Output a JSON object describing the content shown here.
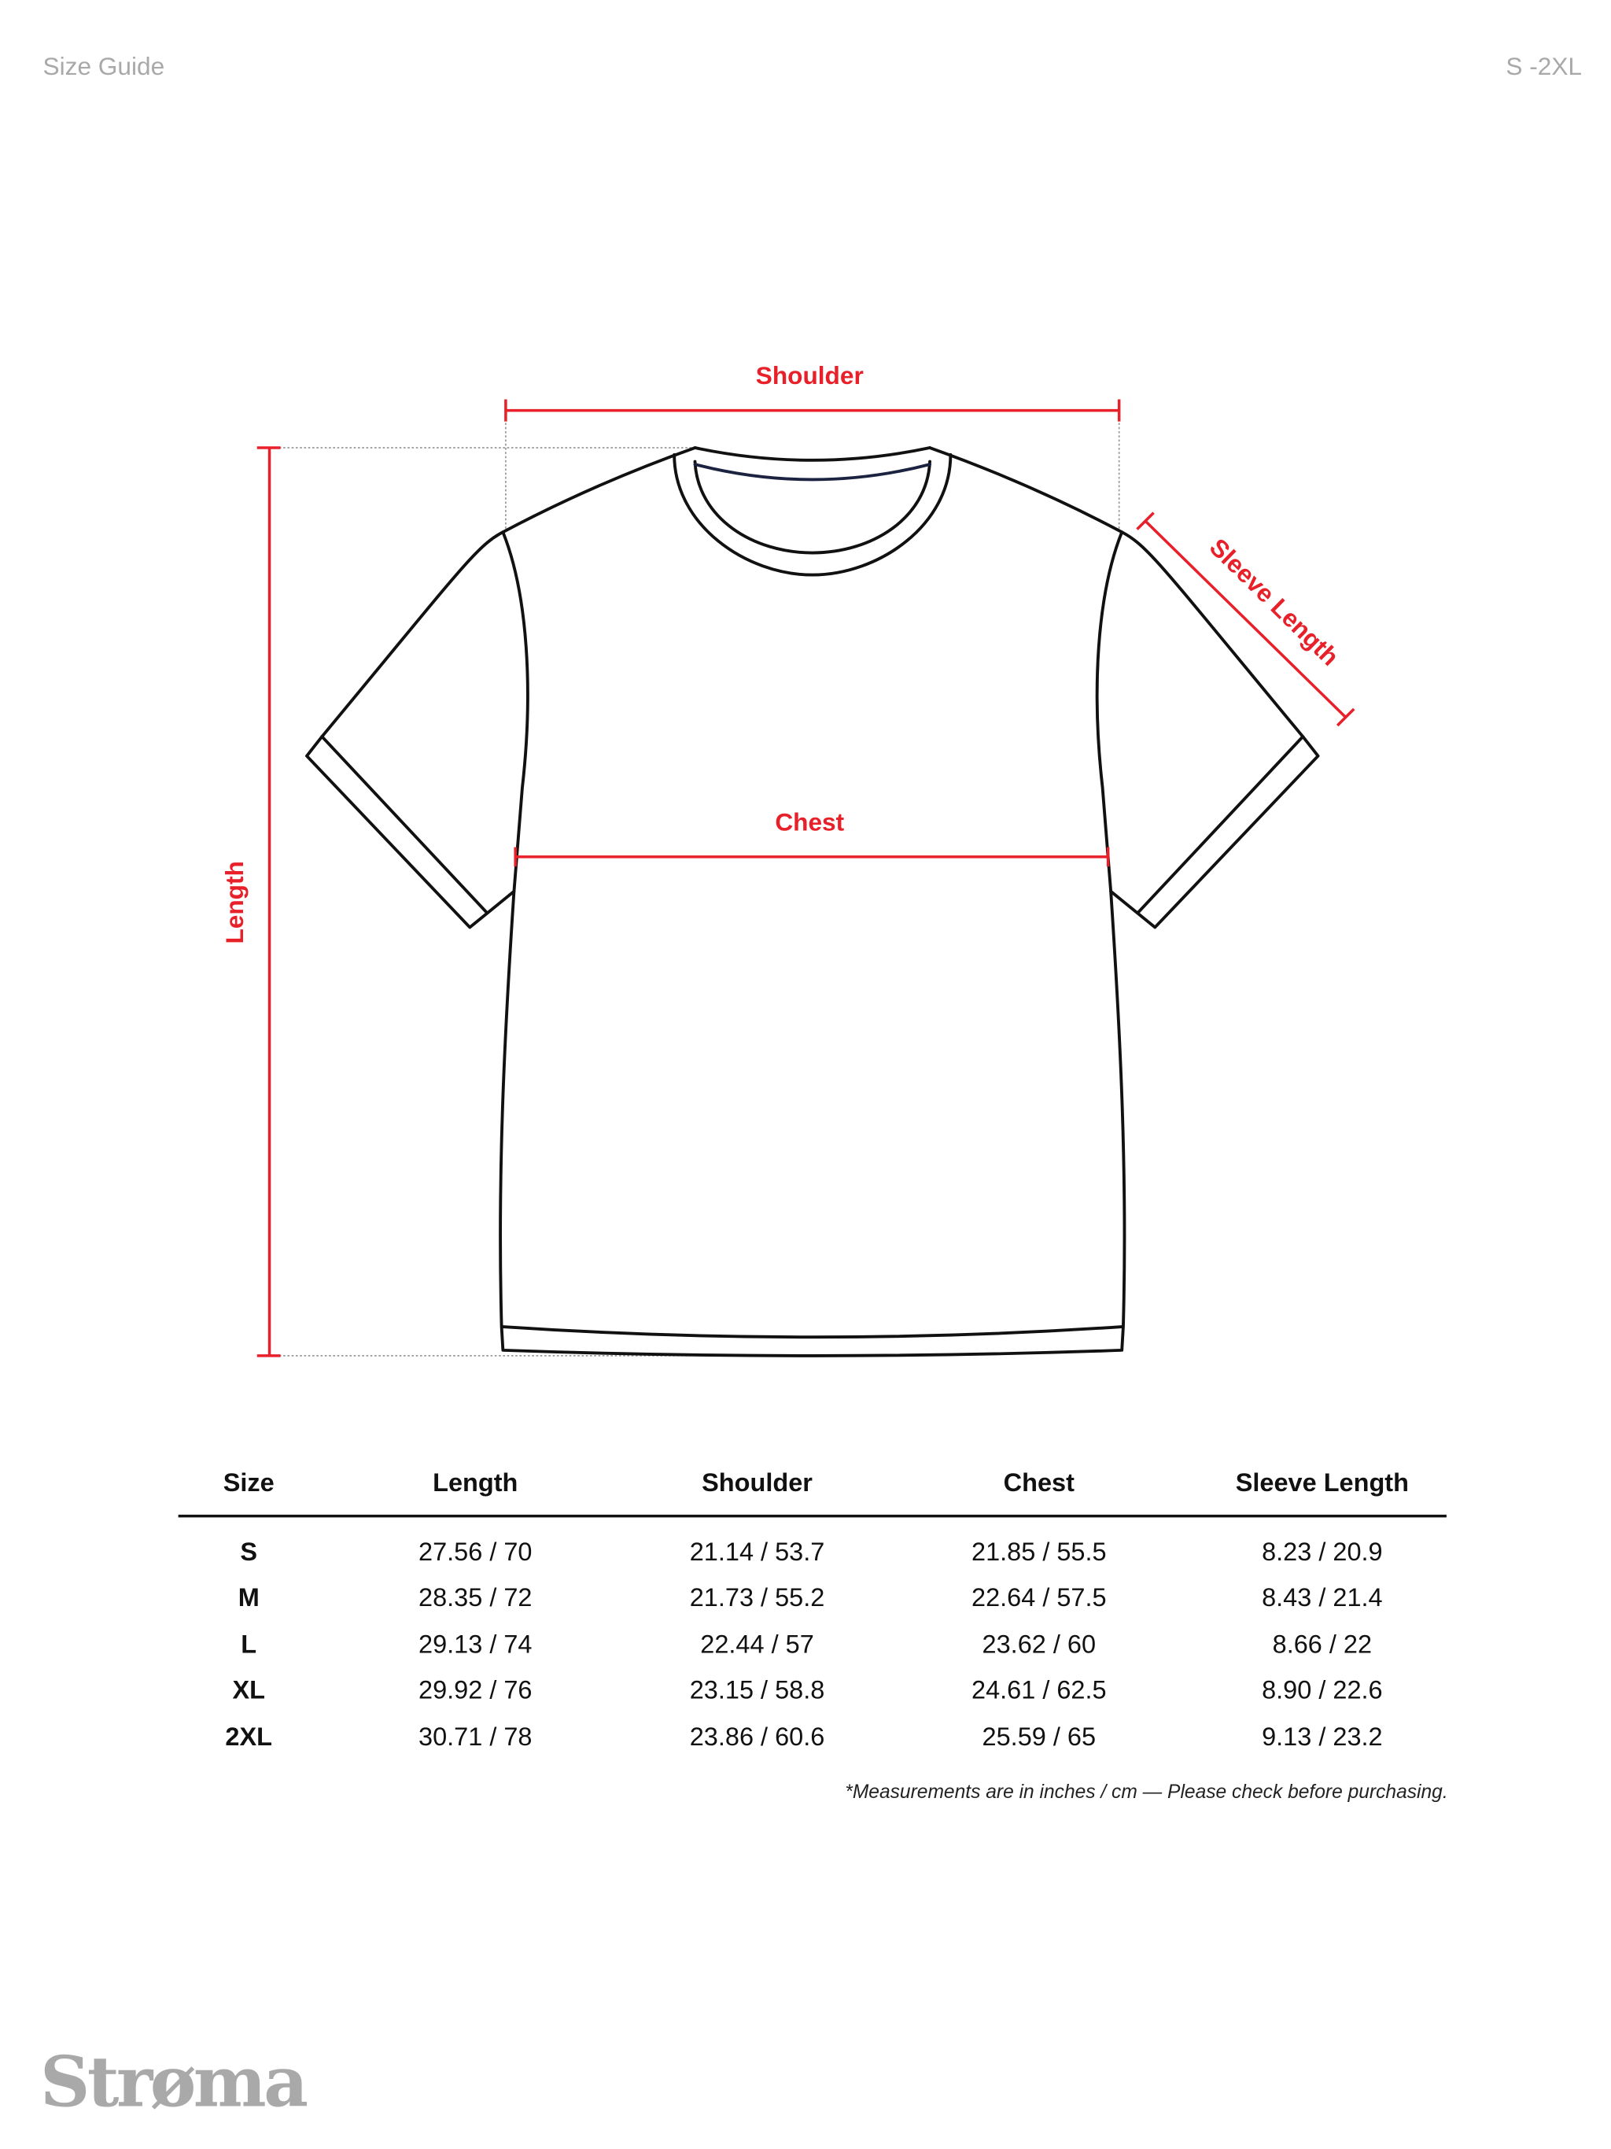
{
  "header": {
    "title": "Size Guide",
    "size_range": "S -2XL"
  },
  "diagram": {
    "labels": {
      "shoulder": "Shoulder",
      "length": "Length",
      "chest": "Chest",
      "sleeve": "Sleeve Length"
    },
    "measure_color": "#e8202a"
  },
  "table": {
    "headers": [
      "Size",
      "Length",
      "Shoulder",
      "Chest",
      "Sleeve Length"
    ],
    "rows": [
      [
        "S",
        "27.56 / 70",
        "21.14 / 53.7",
        "21.85 / 55.5",
        "8.23 / 20.9"
      ],
      [
        "M",
        "28.35 / 72",
        "21.73 / 55.2",
        "22.64 / 57.5",
        "8.43 / 21.4"
      ],
      [
        "L",
        "29.13 / 74",
        "22.44 / 57",
        "23.62 / 60",
        "8.66 / 22"
      ],
      [
        "XL",
        "29.92 / 76",
        "23.15 / 58.8",
        "24.61 / 62.5",
        "8.90 / 22.6"
      ],
      [
        "2XL",
        "30.71 / 78",
        "23.86 / 60.6",
        "25.59 / 65",
        "9.13 / 23.2"
      ]
    ],
    "note": "*Measurements are in inches / cm — Please check before purchasing."
  },
  "brand": {
    "logo": "Strøma"
  }
}
